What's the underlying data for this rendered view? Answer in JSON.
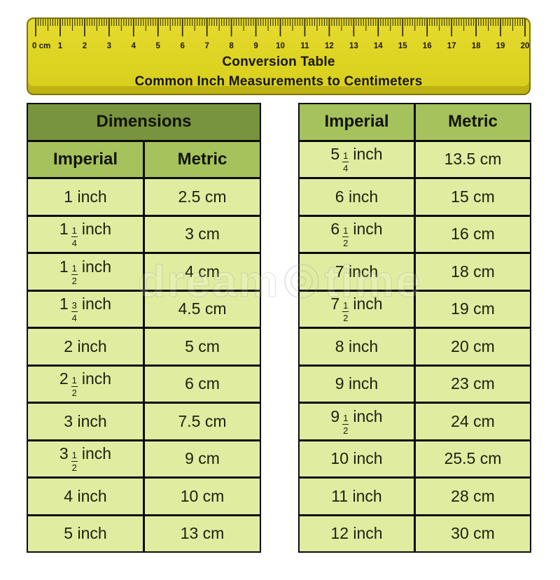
{
  "colors": {
    "ruler_yellow": "#ddd321",
    "ruler_edge": "#7d7306",
    "ruler_bottom_strip": "#bfb314",
    "table_title_green": "#78943e",
    "table_header_green": "#a6c25c",
    "table_cell_green": "#e0eda1",
    "grid_black": "#0b0b0b"
  },
  "ruler": {
    "unit_labels": [
      "0 cm",
      "1",
      "2",
      "3",
      "4",
      "5",
      "6",
      "7",
      "8",
      "9",
      "10",
      "11",
      "12",
      "13",
      "14",
      "15",
      "16",
      "17",
      "18",
      "19",
      "20"
    ],
    "title_line1": "Conversion Table",
    "title_line2": "Common Inch Measurements to Centimeters"
  },
  "left_table": {
    "title": "Dimensions",
    "columns": [
      "Imperial",
      "Metric"
    ],
    "rows": [
      {
        "whole": "1",
        "frac": null,
        "unit": "inch",
        "metric": "2.5 cm"
      },
      {
        "whole": "1",
        "frac": "1/4",
        "unit": "inch",
        "metric": "3 cm"
      },
      {
        "whole": "1",
        "frac": "1/2",
        "unit": "inch",
        "metric": "4 cm"
      },
      {
        "whole": "1",
        "frac": "3/4",
        "unit": "inch",
        "metric": "4.5 cm"
      },
      {
        "whole": "2",
        "frac": null,
        "unit": "inch",
        "metric": "5 cm"
      },
      {
        "whole": "2",
        "frac": "1/2",
        "unit": "inch",
        "metric": "6 cm"
      },
      {
        "whole": "3",
        "frac": null,
        "unit": "inch",
        "metric": "7.5 cm"
      },
      {
        "whole": "3",
        "frac": "1/2",
        "unit": "inch",
        "metric": "9 cm"
      },
      {
        "whole": "4",
        "frac": null,
        "unit": "inch",
        "metric": "10 cm"
      },
      {
        "whole": "5",
        "frac": null,
        "unit": "inch",
        "metric": "13 cm"
      }
    ]
  },
  "right_table": {
    "columns": [
      "Imperial",
      "Metric"
    ],
    "rows": [
      {
        "whole": "5",
        "frac": "1/4",
        "unit": "inch",
        "metric": "13.5 cm"
      },
      {
        "whole": "6",
        "frac": null,
        "unit": "inch",
        "metric": "15 cm"
      },
      {
        "whole": "6",
        "frac": "1/2",
        "unit": "inch",
        "metric": "16 cm"
      },
      {
        "whole": "7",
        "frac": null,
        "unit": "inch",
        "metric": "18 cm"
      },
      {
        "whole": "7",
        "frac": "1/2",
        "unit": "inch",
        "metric": "19 cm"
      },
      {
        "whole": "8",
        "frac": null,
        "unit": "inch",
        "metric": "20 cm"
      },
      {
        "whole": "9",
        "frac": null,
        "unit": "inch",
        "metric": "23 cm"
      },
      {
        "whole": "9",
        "frac": "1/2",
        "unit": "inch",
        "metric": "24 cm"
      },
      {
        "whole": "10",
        "frac": null,
        "unit": "inch",
        "metric": "25.5 cm"
      },
      {
        "whole": "11",
        "frac": null,
        "unit": "inch",
        "metric": "28 cm"
      },
      {
        "whole": "12",
        "frac": null,
        "unit": "inch",
        "metric": "30 cm"
      }
    ]
  },
  "watermark": {
    "left_text": "dream",
    "right_text": "time"
  },
  "chart_data": {
    "type": "table",
    "title": "Conversion Table",
    "subtitle": "Common Inch Measurements to Centimeters",
    "columns": [
      "Imperial",
      "Metric"
    ],
    "rows": [
      [
        "1 inch",
        "2.5 cm"
      ],
      [
        "1 1/4 inch",
        "3 cm"
      ],
      [
        "1 1/2 inch",
        "4 cm"
      ],
      [
        "1 3/4 inch",
        "4.5 cm"
      ],
      [
        "2 inch",
        "5 cm"
      ],
      [
        "2 1/2 inch",
        "6 cm"
      ],
      [
        "3 inch",
        "7.5 cm"
      ],
      [
        "3 1/2 inch",
        "9 cm"
      ],
      [
        "4 inch",
        "10 cm"
      ],
      [
        "5 inch",
        "13 cm"
      ],
      [
        "5 1/4 inch",
        "13.5 cm"
      ],
      [
        "6 inch",
        "15 cm"
      ],
      [
        "6 1/2 inch",
        "16 cm"
      ],
      [
        "7 inch",
        "18 cm"
      ],
      [
        "7 1/2 inch",
        "19 cm"
      ],
      [
        "8 inch",
        "20 cm"
      ],
      [
        "9 inch",
        "23 cm"
      ],
      [
        "9 1/2 inch",
        "24 cm"
      ],
      [
        "10 inch",
        "25.5 cm"
      ],
      [
        "11 inch",
        "28 cm"
      ],
      [
        "12 inch",
        "30 cm"
      ]
    ],
    "ruler_scale_cm": [
      0,
      20
    ]
  }
}
